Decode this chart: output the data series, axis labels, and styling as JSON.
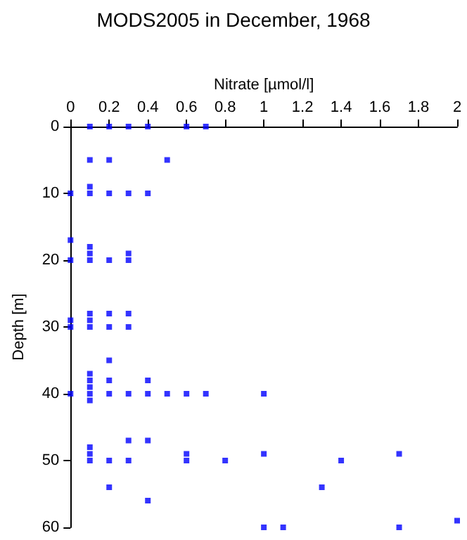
{
  "chart_data": {
    "type": "scatter",
    "title": "MODS2005 in December, 1968",
    "xlabel": "Nitrate [µmol/l]",
    "ylabel": "Depth [m]",
    "x": [
      0.1,
      0.2,
      0.3,
      0.4,
      0.6,
      0.7,
      0.1,
      0.2,
      0.5,
      0.1,
      0,
      0.1,
      0.2,
      0.3,
      0.4,
      0,
      0.1,
      0.1,
      0.3,
      0,
      0.1,
      0.2,
      0.3,
      0.1,
      0.2,
      0.3,
      0,
      0.1,
      0,
      0.1,
      0.2,
      0.3,
      0.2,
      0.1,
      0.1,
      0.2,
      0.4,
      0.1,
      0,
      0.1,
      0.2,
      0.3,
      0.4,
      0.5,
      0.6,
      0.7,
      1.0,
      0.1,
      0.3,
      0.4,
      0.1,
      0.1,
      0.6,
      1.0,
      1.7,
      0.1,
      0.2,
      0.3,
      0.6,
      0.8,
      1.4,
      0.2,
      1.3,
      0.4,
      1.0,
      1.1,
      1.7,
      2.0
    ],
    "values": [
      0,
      0,
      0,
      0,
      0,
      0,
      5,
      5,
      5,
      9,
      10,
      10,
      10,
      10,
      10,
      17,
      18,
      19,
      19,
      20,
      20,
      20,
      20,
      28,
      28,
      28,
      29,
      29,
      30,
      30,
      30,
      30,
      35,
      37,
      38,
      38,
      38,
      39,
      40,
      40,
      40,
      40,
      40,
      40,
      40,
      40,
      40,
      41,
      47,
      47,
      48,
      49,
      49,
      49,
      49,
      50,
      50,
      50,
      50,
      50,
      50,
      54,
      54,
      56,
      60,
      60,
      60,
      59
    ],
    "color": "#0000ff",
    "marker": "square",
    "xlim": [
      0,
      2
    ],
    "xticks": [
      0,
      0.2,
      0.4,
      0.6,
      0.8,
      1,
      1.2,
      1.4,
      1.6,
      1.8,
      2
    ],
    "ylim": [
      60,
      0
    ],
    "yticks": [
      0,
      10,
      20,
      30,
      40,
      50,
      60
    ],
    "grid": false
  }
}
